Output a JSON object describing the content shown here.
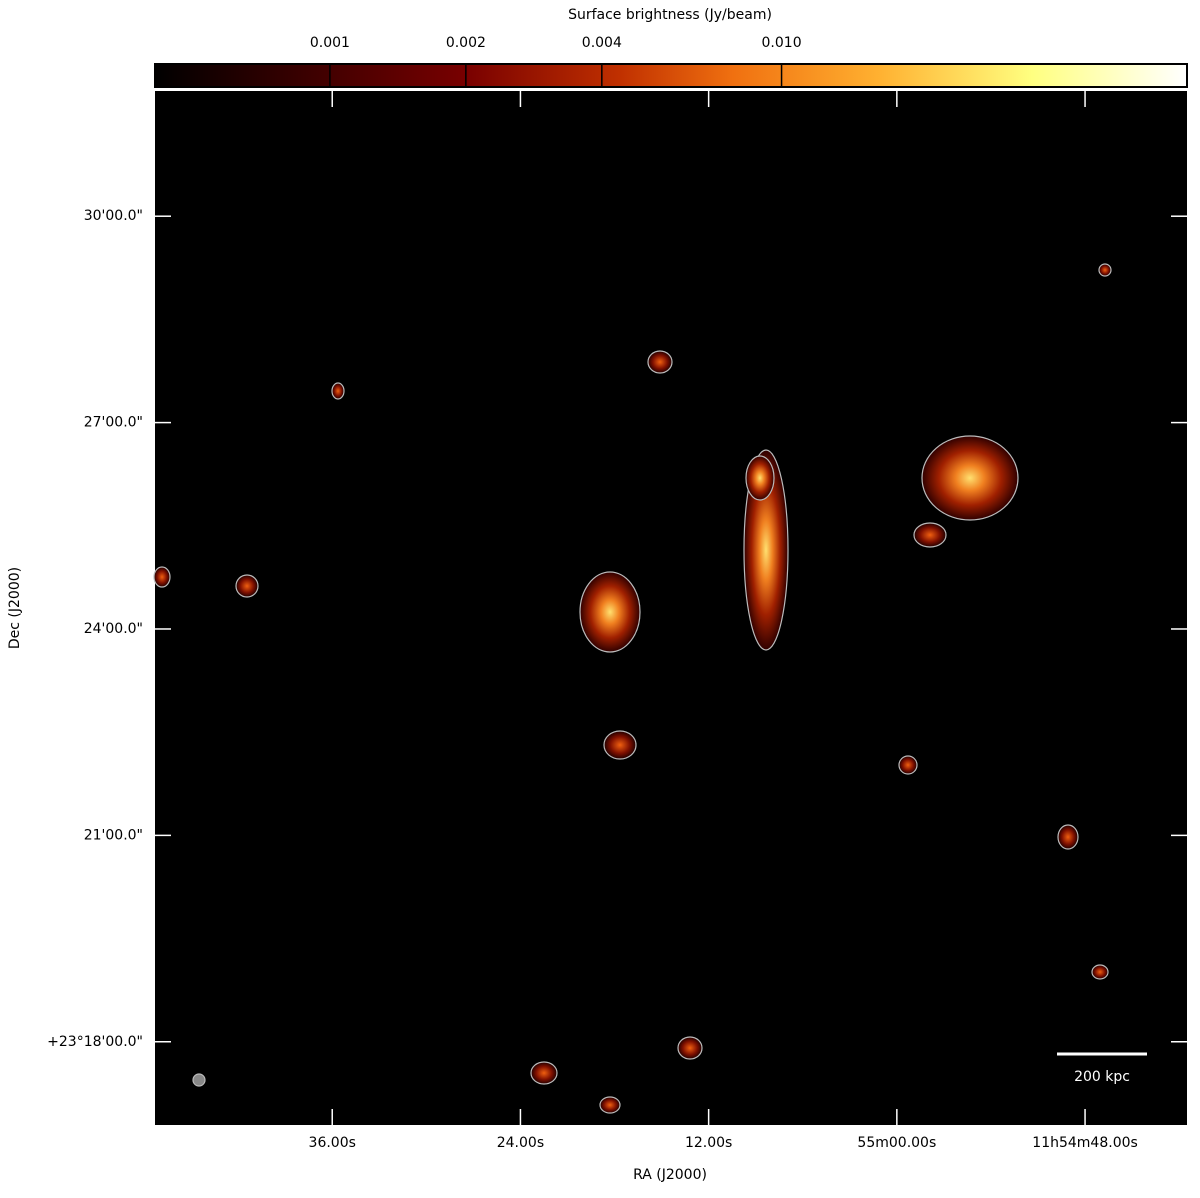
{
  "chart_data": {
    "type": "image",
    "colorbar_title": "Surface brightness (Jy/beam)",
    "colorbar_scale": "log",
    "clim": [
      0.00041,
      0.079
    ],
    "cticks": [
      0.001,
      0.002,
      0.004,
      {
        "value": 0.01,
        "label": "0.010"
      }
    ],
    "xlabel": "RA (J2000)",
    "ylabel": "Dec (J2000)",
    "xlim": [
      107.3,
      41.5
    ],
    "xticks": [
      {
        "value": 96,
        "label": "36.00s"
      },
      {
        "value": 84,
        "label": "24.00s"
      },
      {
        "value": 72,
        "label": "12.00s"
      },
      {
        "value": 60,
        "label": "55m00.00s"
      },
      {
        "value": 48,
        "label": "11h54m48.00s"
      }
    ],
    "ylim": [
      16.79,
      31.82
    ],
    "yticks": [
      {
        "value": 18,
        "label": "+23°18'00.0\""
      },
      {
        "value": 21,
        "label": "21'00.0\""
      },
      {
        "value": 24,
        "label": "24'00.0\""
      },
      {
        "value": 27,
        "label": "27'00.0\""
      },
      {
        "value": 30,
        "label": "30'00.0\""
      }
    ],
    "scalebar_label": "200 kpc"
  }
}
